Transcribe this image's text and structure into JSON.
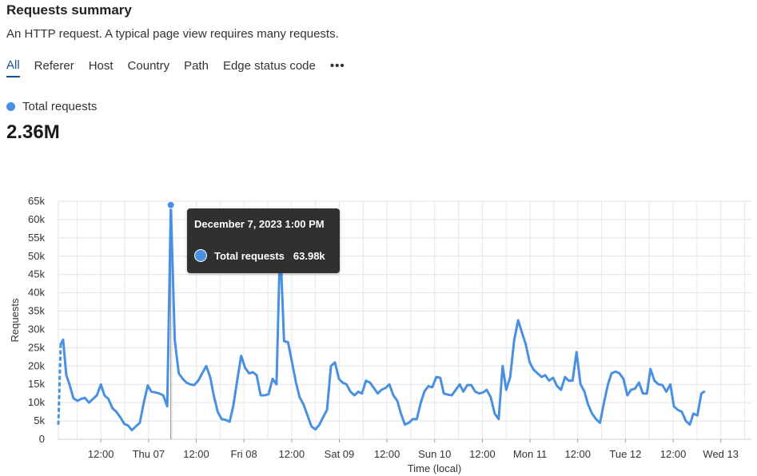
{
  "header": {
    "title": "Requests summary",
    "subtitle": "An HTTP request. A typical page view requires many requests."
  },
  "tabs": [
    {
      "label": "All",
      "active": true
    },
    {
      "label": "Referer"
    },
    {
      "label": "Host"
    },
    {
      "label": "Country"
    },
    {
      "label": "Path"
    },
    {
      "label": "Edge status code"
    }
  ],
  "more_icon": "more-horizontal-icon",
  "legend": {
    "label": "Total requests",
    "color": "#4a90e2"
  },
  "total_value": "2.36M",
  "tooltip": {
    "title": "December 7, 2023 1:00 PM",
    "series": "Total requests",
    "value": "63.98k"
  },
  "chart_data": {
    "type": "line",
    "xlabel": "Time (local)",
    "ylabel": "Requests",
    "ylim": [
      0,
      65000
    ],
    "y_ticks": [
      "0",
      "5k",
      "10k",
      "15k",
      "20k",
      "25k",
      "30k",
      "35k",
      "40k",
      "45k",
      "50k",
      "55k",
      "60k",
      "65k"
    ],
    "x_ticks": [
      {
        "label": "12:00",
        "h": 12
      },
      {
        "label": "Thu 07",
        "h": 24
      },
      {
        "label": "12:00",
        "h": 36
      },
      {
        "label": "Fri 08",
        "h": 48
      },
      {
        "label": "12:00",
        "h": 60
      },
      {
        "label": "Sat 09",
        "h": 72
      },
      {
        "label": "12:00",
        "h": 84
      },
      {
        "label": "Sun 10",
        "h": 96
      },
      {
        "label": "12:00",
        "h": 108
      },
      {
        "label": "Mon 11",
        "h": 120
      },
      {
        "label": "12:00",
        "h": 132
      },
      {
        "label": "Tue 12",
        "h": 144
      },
      {
        "label": "12:00",
        "h": 156
      },
      {
        "label": "Wed 13",
        "h": 168
      }
    ],
    "x_range_hours": [
      1.3,
      175.7
    ],
    "grid": true,
    "series": [
      {
        "name": "Total requests",
        "color": "#4a90e2",
        "dashed_leading_points": 2,
        "points": [
          [
            1.3,
            4000
          ],
          [
            1.9,
            26000
          ],
          [
            2.5,
            27200
          ],
          [
            3.3,
            17500
          ],
          [
            4.1,
            15000
          ],
          [
            5.1,
            11200
          ],
          [
            6.1,
            10500
          ],
          [
            7.0,
            11000
          ],
          [
            8.0,
            11300
          ],
          [
            9.0,
            10000
          ],
          [
            10.0,
            11000
          ],
          [
            11.0,
            12000
          ],
          [
            12.0,
            15000
          ],
          [
            12.9,
            12000
          ],
          [
            13.9,
            11000
          ],
          [
            14.9,
            8500
          ],
          [
            15.9,
            7500
          ],
          [
            16.9,
            6000
          ],
          [
            17.9,
            4200
          ],
          [
            18.8,
            3800
          ],
          [
            19.8,
            2500
          ],
          [
            20.8,
            3500
          ],
          [
            21.8,
            4500
          ],
          [
            22.8,
            10000
          ],
          [
            23.8,
            14700
          ],
          [
            24.7,
            13000
          ],
          [
            25.7,
            12800
          ],
          [
            26.7,
            12500
          ],
          [
            27.7,
            12000
          ],
          [
            28.7,
            9000
          ],
          [
            29.6,
            63980
          ],
          [
            30.6,
            27000
          ],
          [
            31.6,
            18000
          ],
          [
            32.6,
            16500
          ],
          [
            33.5,
            15500
          ],
          [
            34.5,
            15000
          ],
          [
            35.5,
            14800
          ],
          [
            36.5,
            16000
          ],
          [
            37.5,
            18000
          ],
          [
            38.5,
            20000
          ],
          [
            39.5,
            17000
          ],
          [
            40.4,
            12000
          ],
          [
            41.4,
            7500
          ],
          [
            42.4,
            5500
          ],
          [
            43.4,
            5300
          ],
          [
            44.4,
            4800
          ],
          [
            45.3,
            9000
          ],
          [
            46.3,
            16000
          ],
          [
            47.3,
            22800
          ],
          [
            48.3,
            19500
          ],
          [
            49.3,
            18000
          ],
          [
            50.3,
            18300
          ],
          [
            51.2,
            17500
          ],
          [
            52.2,
            12000
          ],
          [
            53.2,
            12000
          ],
          [
            54.2,
            12300
          ],
          [
            55.2,
            16500
          ],
          [
            56.2,
            15000
          ],
          [
            57.1,
            54000
          ],
          [
            58.1,
            26800
          ],
          [
            59.1,
            26500
          ],
          [
            60.1,
            21000
          ],
          [
            61.1,
            15500
          ],
          [
            62.0,
            11500
          ],
          [
            63.0,
            9500
          ],
          [
            64.0,
            6500
          ],
          [
            65.0,
            3500
          ],
          [
            66.0,
            2700
          ],
          [
            67.0,
            4000
          ],
          [
            67.9,
            6000
          ],
          [
            68.9,
            8000
          ],
          [
            69.9,
            20000
          ],
          [
            70.9,
            21000
          ],
          [
            71.9,
            16500
          ],
          [
            72.8,
            15500
          ],
          [
            73.8,
            15000
          ],
          [
            74.8,
            13000
          ],
          [
            75.8,
            12000
          ],
          [
            76.8,
            13000
          ],
          [
            77.7,
            12500
          ],
          [
            78.7,
            16000
          ],
          [
            79.7,
            15500
          ],
          [
            80.7,
            14000
          ],
          [
            81.7,
            12500
          ],
          [
            82.6,
            13500
          ],
          [
            83.6,
            14000
          ],
          [
            84.6,
            15000
          ],
          [
            85.6,
            12000
          ],
          [
            86.6,
            10500
          ],
          [
            87.5,
            7000
          ],
          [
            88.5,
            4000
          ],
          [
            89.5,
            4500
          ],
          [
            90.5,
            5500
          ],
          [
            91.5,
            5500
          ],
          [
            92.5,
            10000
          ],
          [
            93.4,
            13000
          ],
          [
            94.4,
            14500
          ],
          [
            95.4,
            14200
          ],
          [
            96.4,
            17000
          ],
          [
            97.4,
            16800
          ],
          [
            98.3,
            12500
          ],
          [
            99.3,
            12200
          ],
          [
            100.3,
            12000
          ],
          [
            101.3,
            13500
          ],
          [
            102.3,
            15000
          ],
          [
            103.2,
            13000
          ],
          [
            104.2,
            14800
          ],
          [
            105.2,
            14800
          ],
          [
            106.2,
            13000
          ],
          [
            107.2,
            12500
          ],
          [
            108.2,
            12800
          ],
          [
            109.1,
            13500
          ],
          [
            110.1,
            11500
          ],
          [
            111.1,
            7000
          ],
          [
            112.1,
            5500
          ],
          [
            113.1,
            20000
          ],
          [
            114.0,
            13500
          ],
          [
            115.0,
            17000
          ],
          [
            116.0,
            27000
          ],
          [
            117.0,
            32500
          ],
          [
            118.0,
            29000
          ],
          [
            118.9,
            26000
          ],
          [
            119.9,
            21000
          ],
          [
            120.9,
            19000
          ],
          [
            121.9,
            18000
          ],
          [
            122.9,
            17000
          ],
          [
            123.8,
            17500
          ],
          [
            124.8,
            16000
          ],
          [
            125.8,
            16800
          ],
          [
            126.8,
            14500
          ],
          [
            127.8,
            13500
          ],
          [
            128.8,
            17000
          ],
          [
            129.7,
            16000
          ],
          [
            130.7,
            16000
          ],
          [
            131.7,
            23800
          ],
          [
            132.7,
            15000
          ],
          [
            133.7,
            13000
          ],
          [
            134.6,
            9500
          ],
          [
            135.6,
            7000
          ],
          [
            136.6,
            5500
          ],
          [
            137.6,
            4500
          ],
          [
            138.6,
            10000
          ],
          [
            139.6,
            15000
          ],
          [
            140.5,
            18000
          ],
          [
            141.5,
            18500
          ],
          [
            142.5,
            18000
          ],
          [
            143.5,
            16500
          ],
          [
            144.5,
            12000
          ],
          [
            145.4,
            13500
          ],
          [
            146.4,
            13800
          ],
          [
            147.4,
            15500
          ],
          [
            148.4,
            12500
          ],
          [
            149.4,
            12500
          ],
          [
            150.3,
            19200
          ],
          [
            151.3,
            16000
          ],
          [
            152.3,
            15000
          ],
          [
            153.3,
            14800
          ],
          [
            154.3,
            13000
          ],
          [
            155.3,
            15000
          ],
          [
            156.2,
            9000
          ],
          [
            157.2,
            8000
          ],
          [
            158.2,
            7500
          ],
          [
            159.2,
            5000
          ],
          [
            160.2,
            4000
          ],
          [
            161.1,
            7000
          ],
          [
            162.1,
            6500
          ],
          [
            163.1,
            12500
          ],
          [
            163.8,
            13000
          ]
        ]
      }
    ],
    "highlight_index": 30
  }
}
